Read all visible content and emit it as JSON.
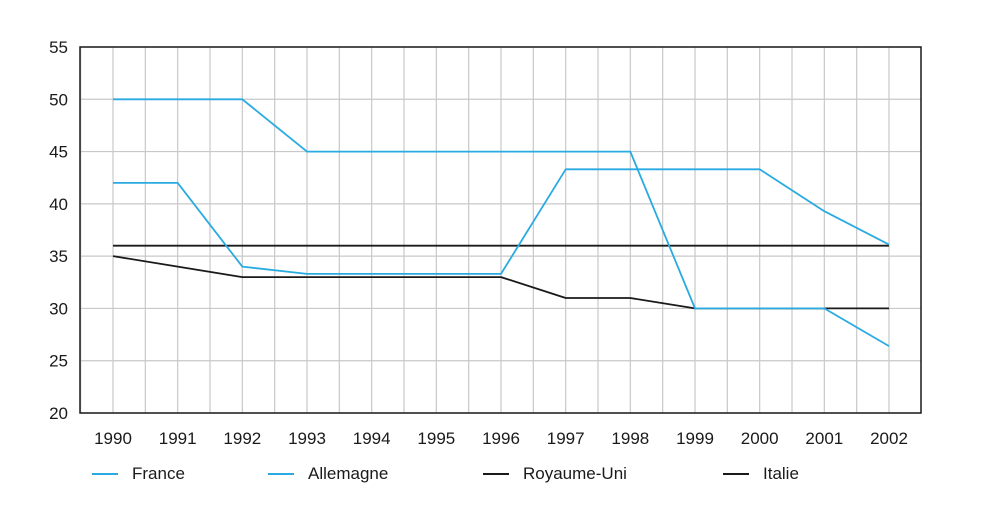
{
  "chart_data": {
    "type": "line",
    "title": "",
    "xlabel": "",
    "ylabel": "",
    "x": [
      "1990",
      "1991",
      "1992",
      "1993",
      "1994",
      "1995",
      "1996",
      "1997",
      "1998",
      "1999",
      "2000",
      "2001",
      "2002"
    ],
    "ylim": [
      20,
      55
    ],
    "yticks": [
      "20",
      "25",
      "30",
      "35",
      "40",
      "45",
      "50",
      "55"
    ],
    "grid": true,
    "legend_position": "bottom",
    "series": [
      {
        "name": "France",
        "color": "#29abe2",
        "values": [
          42,
          42,
          34,
          33.3,
          33.3,
          33.3,
          33.3,
          43.3,
          43.3,
          43.3,
          43.3,
          39.3,
          36.1
        ]
      },
      {
        "name": "Allemagne",
        "color": "#29abe2",
        "values": [
          50,
          50,
          50,
          45,
          45,
          45,
          45,
          45,
          45,
          30,
          30,
          30,
          26.4
        ]
      },
      {
        "name": "Royaume-Uni",
        "color": "#1a1a1a",
        "values": [
          36,
          36,
          36,
          36,
          36,
          36,
          36,
          36,
          36,
          36,
          36,
          36,
          36
        ]
      },
      {
        "name": "Italie",
        "color": "#1a1a1a",
        "values": [
          35,
          34,
          33,
          33,
          33,
          33,
          33,
          31,
          31,
          30,
          30,
          30,
          30
        ]
      }
    ]
  }
}
